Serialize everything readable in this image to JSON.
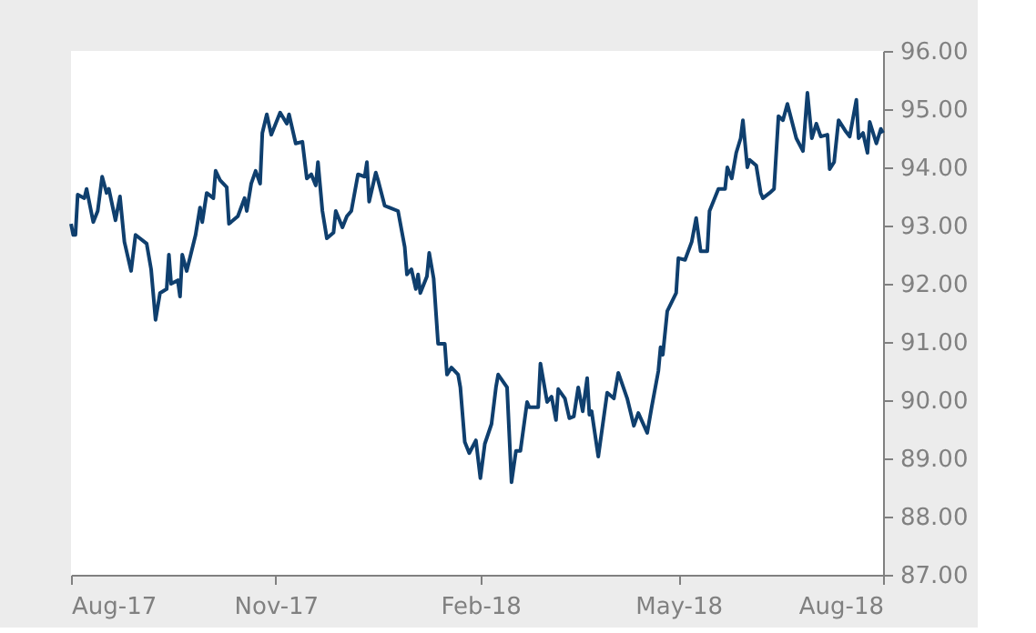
{
  "chart_data": {
    "type": "line",
    "x": [
      "2017-08-01",
      "2017-08-02",
      "2017-08-03",
      "2017-08-04",
      "2017-08-07",
      "2017-08-08",
      "2017-08-11",
      "2017-08-13",
      "2017-08-15",
      "2017-08-17",
      "2017-08-18",
      "2017-08-21",
      "2017-08-23",
      "2017-08-25",
      "2017-08-28",
      "2017-08-30",
      "2017-09-04",
      "2017-09-06",
      "2017-09-08",
      "2017-09-10",
      "2017-09-13",
      "2017-09-14",
      "2017-09-15",
      "2017-09-18",
      "2017-09-19",
      "2017-09-20",
      "2017-09-22",
      "2017-09-26",
      "2017-09-28",
      "2017-09-29",
      "2017-10-01",
      "2017-10-04",
      "2017-10-05",
      "2017-10-07",
      "2017-10-10",
      "2017-10-11",
      "2017-10-15",
      "2017-10-18",
      "2017-10-19",
      "2017-10-21",
      "2017-10-23",
      "2017-10-25",
      "2017-10-26",
      "2017-10-28",
      "2017-10-30",
      "2017-11-01",
      "2017-11-03",
      "2017-11-06",
      "2017-11-07",
      "2017-11-10",
      "2017-11-13",
      "2017-11-15",
      "2017-11-17",
      "2017-11-19",
      "2017-11-20",
      "2017-11-22",
      "2017-11-24",
      "2017-11-27",
      "2017-11-28",
      "2017-12-01",
      "2017-12-03",
      "2017-12-05",
      "2017-12-08",
      "2017-12-11",
      "2017-12-12",
      "2017-12-13",
      "2017-12-16",
      "2017-12-17",
      "2017-12-20",
      "2017-12-22",
      "2017-12-26",
      "2017-12-29",
      "2017-12-30",
      "2018-01-01",
      "2018-01-03",
      "2018-01-04",
      "2018-01-05",
      "2018-01-08",
      "2018-01-09",
      "2018-01-11",
      "2018-01-13",
      "2018-01-16",
      "2018-01-17",
      "2018-01-19",
      "2018-01-22",
      "2018-01-23",
      "2018-01-25",
      "2018-01-27",
      "2018-01-30",
      "2018-02-01",
      "2018-02-03",
      "2018-02-06",
      "2018-02-08",
      "2018-02-09",
      "2018-02-13",
      "2018-02-15",
      "2018-02-17",
      "2018-02-19",
      "2018-02-22",
      "2018-02-23",
      "2018-02-27",
      "2018-02-28",
      "2018-03-03",
      "2018-03-05",
      "2018-03-07",
      "2018-03-08",
      "2018-03-11",
      "2018-03-13",
      "2018-03-15",
      "2018-03-17",
      "2018-03-19",
      "2018-03-21",
      "2018-03-22",
      "2018-03-23",
      "2018-03-26",
      "2018-03-30",
      "2018-04-02",
      "2018-04-04",
      "2018-04-08",
      "2018-04-11",
      "2018-04-13",
      "2018-04-17",
      "2018-04-19",
      "2018-04-22",
      "2018-04-23",
      "2018-04-24",
      "2018-04-26",
      "2018-04-30",
      "2018-05-01",
      "2018-05-04",
      "2018-05-07",
      "2018-05-09",
      "2018-05-11",
      "2018-05-14",
      "2018-05-15",
      "2018-05-19",
      "2018-05-22",
      "2018-05-23",
      "2018-05-25",
      "2018-05-27",
      "2018-05-29",
      "2018-05-30",
      "2018-06-01",
      "2018-06-02",
      "2018-06-05",
      "2018-06-07",
      "2018-06-08",
      "2018-06-11",
      "2018-06-13",
      "2018-06-15",
      "2018-06-17",
      "2018-06-19",
      "2018-06-23",
      "2018-06-26",
      "2018-06-28",
      "2018-06-30",
      "2018-07-02",
      "2018-07-04",
      "2018-07-07",
      "2018-07-08",
      "2018-07-10",
      "2018-07-12",
      "2018-07-15",
      "2018-07-17",
      "2018-07-20",
      "2018-07-21",
      "2018-07-23",
      "2018-07-25",
      "2018-07-26",
      "2018-07-29",
      "2018-07-31",
      "2018-08-01"
    ],
    "series": [
      {
        "color": "#0f3f6e",
        "values": [
          93.03,
          92.84,
          92.84,
          93.53,
          93.47,
          93.63,
          93.06,
          93.25,
          93.84,
          93.56,
          93.63,
          93.09,
          93.5,
          92.72,
          92.22,
          92.84,
          92.69,
          92.25,
          91.38,
          91.84,
          91.91,
          92.5,
          92.0,
          92.06,
          91.78,
          92.5,
          92.22,
          92.84,
          93.31,
          93.06,
          93.56,
          93.47,
          93.94,
          93.78,
          93.66,
          93.03,
          93.16,
          93.47,
          93.25,
          93.72,
          93.94,
          93.72,
          94.59,
          94.91,
          94.56,
          94.75,
          94.94,
          94.75,
          94.91,
          94.41,
          94.44,
          93.81,
          93.88,
          93.69,
          94.09,
          93.25,
          92.78,
          92.88,
          93.25,
          92.97,
          93.16,
          93.25,
          93.88,
          93.84,
          94.09,
          93.41,
          93.91,
          93.78,
          93.34,
          93.31,
          93.25,
          92.63,
          92.16,
          92.25,
          91.91,
          92.16,
          91.84,
          92.13,
          92.53,
          92.09,
          90.97,
          90.97,
          90.44,
          90.56,
          90.44,
          90.22,
          89.28,
          89.09,
          89.31,
          88.66,
          89.25,
          89.59,
          90.22,
          90.44,
          90.22,
          88.59,
          89.13,
          89.13,
          89.97,
          89.88,
          89.88,
          90.63,
          89.97,
          90.06,
          89.66,
          90.19,
          90.03,
          89.69,
          89.72,
          90.22,
          89.81,
          90.38,
          89.75,
          89.81,
          89.03,
          90.13,
          90.03,
          90.47,
          90.03,
          89.56,
          89.78,
          89.44,
          89.88,
          90.5,
          90.91,
          90.78,
          91.53,
          91.84,
          92.44,
          92.41,
          92.72,
          93.13,
          92.56,
          92.56,
          93.25,
          93.63,
          93.63,
          94.0,
          93.81,
          94.25,
          94.5,
          94.81,
          94.0,
          94.13,
          94.03,
          93.56,
          93.47,
          93.56,
          93.63,
          94.88,
          94.81,
          95.09,
          94.5,
          94.28,
          95.28,
          94.5,
          94.75,
          94.53,
          94.56,
          93.97,
          94.09,
          94.81,
          94.63,
          94.53,
          95.16,
          94.5,
          94.59,
          94.25,
          94.78,
          94.41,
          94.66,
          94.59
        ]
      }
    ],
    "xlim": [
      "2017-08-01",
      "2018-08-01"
    ],
    "xticks": [
      {
        "value": "2017-08-01",
        "label": "Aug-17"
      },
      {
        "value": "2017-11-01",
        "label": "Nov-17"
      },
      {
        "value": "2018-02-01",
        "label": "Feb-18"
      },
      {
        "value": "2018-05-01",
        "label": "May-18"
      },
      {
        "value": "2018-08-01",
        "label": "Aug-18"
      }
    ],
    "ylim": [
      87,
      96
    ],
    "yticks": [
      {
        "value": 87,
        "label": "87.00"
      },
      {
        "value": 88,
        "label": "88.00"
      },
      {
        "value": 89,
        "label": "89.00"
      },
      {
        "value": 90,
        "label": "90.00"
      },
      {
        "value": 91,
        "label": "91.00"
      },
      {
        "value": 92,
        "label": "92.00"
      },
      {
        "value": 93,
        "label": "93.00"
      },
      {
        "value": 94,
        "label": "94.00"
      },
      {
        "value": 95,
        "label": "95.00"
      },
      {
        "value": 96,
        "label": "96.00"
      }
    ]
  }
}
